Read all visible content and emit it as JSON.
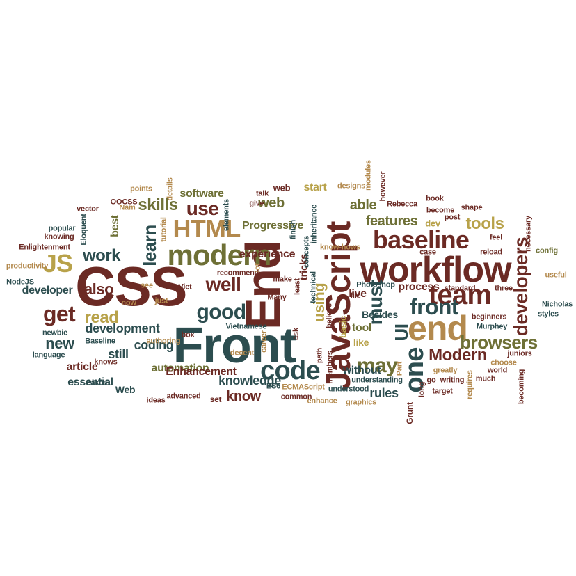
{
  "palette": {
    "maroon": "#6b2a24",
    "teal": "#2c4d4f",
    "olive": "#6e7036",
    "tan": "#b3894d",
    "gold": "#b8a24a",
    "lightgold": "#c5b46a"
  },
  "words": [
    {
      "text": "CSS",
      "c": "maroon"
    },
    {
      "text": "Front",
      "c": "teal"
    },
    {
      "text": "End",
      "c": "maroon"
    },
    {
      "text": "workflow",
      "c": "maroon"
    },
    {
      "text": "JavaScript",
      "c": "maroon"
    },
    {
      "text": "team",
      "c": "maroon"
    },
    {
      "text": "modern",
      "c": "olive"
    },
    {
      "text": "baseline",
      "c": "maroon"
    },
    {
      "text": "HTML",
      "c": "tan"
    },
    {
      "text": "front",
      "c": "teal"
    },
    {
      "text": "end",
      "c": "tan"
    },
    {
      "text": "code",
      "c": "teal"
    },
    {
      "text": "JS",
      "c": "gold"
    },
    {
      "text": "well",
      "c": "maroon"
    },
    {
      "text": "good",
      "c": "teal"
    },
    {
      "text": "get",
      "c": "maroon"
    },
    {
      "text": "developers",
      "c": "maroon"
    },
    {
      "text": "one",
      "c": "teal"
    },
    {
      "text": "must",
      "c": "teal"
    },
    {
      "text": "UI",
      "c": "teal"
    },
    {
      "text": "may",
      "c": "olive"
    },
    {
      "text": "browsers",
      "c": "olive"
    },
    {
      "text": "tools",
      "c": "gold"
    },
    {
      "text": "use",
      "c": "maroon"
    },
    {
      "text": "skills",
      "c": "olive"
    },
    {
      "text": "learn",
      "c": "teal"
    },
    {
      "text": "work",
      "c": "teal"
    },
    {
      "text": "read",
      "c": "gold"
    },
    {
      "text": "new",
      "c": "teal"
    },
    {
      "text": "also",
      "c": "maroon"
    },
    {
      "text": "Modern",
      "c": "maroon"
    },
    {
      "text": "using",
      "c": "gold"
    },
    {
      "text": "features",
      "c": "olive"
    },
    {
      "text": "able",
      "c": "olive"
    },
    {
      "text": "web",
      "c": "olive"
    },
    {
      "text": "development",
      "c": "teal"
    },
    {
      "text": "coding",
      "c": "teal"
    },
    {
      "text": "still",
      "c": "teal"
    },
    {
      "text": "know",
      "c": "maroon"
    },
    {
      "text": "knowledge",
      "c": "teal"
    },
    {
      "text": "automation",
      "c": "olive"
    },
    {
      "text": "article",
      "c": "maroon"
    },
    {
      "text": "essential",
      "c": "teal"
    },
    {
      "text": "Enhancement",
      "c": "maroon"
    },
    {
      "text": "Progressive",
      "c": "olive"
    },
    {
      "text": "experience",
      "c": "maroon"
    },
    {
      "text": "developer",
      "c": "teal"
    },
    {
      "text": "process",
      "c": "maroon"
    },
    {
      "text": "start",
      "c": "gold"
    },
    {
      "text": "software",
      "c": "olive"
    },
    {
      "text": "rules",
      "c": "teal"
    },
    {
      "text": "without",
      "c": "teal"
    },
    {
      "text": "tool",
      "c": "olive"
    },
    {
      "text": "live",
      "c": "maroon"
    },
    {
      "text": "like",
      "c": "gold"
    },
    {
      "text": "Besides",
      "c": "teal"
    },
    {
      "text": "Web",
      "c": "teal"
    },
    {
      "text": "best",
      "c": "olive"
    },
    {
      "text": "dev",
      "c": "gold"
    },
    {
      "text": "basic",
      "c": "gold"
    },
    {
      "text": "tricks",
      "c": "maroon"
    },
    {
      "text": "web",
      "c": "maroon"
    },
    {
      "text": "set",
      "c": "maroon"
    },
    {
      "text": "Grunt",
      "c": "maroon"
    },
    {
      "text": "points",
      "c": "tan"
    },
    {
      "text": "details",
      "c": "tan"
    },
    {
      "text": "elements",
      "c": "teal"
    },
    {
      "text": "talk",
      "c": "maroon"
    },
    {
      "text": "give",
      "c": "maroon"
    },
    {
      "text": "designs",
      "c": "tan"
    },
    {
      "text": "however",
      "c": "maroon"
    },
    {
      "text": "modules",
      "c": "tan"
    },
    {
      "text": "book",
      "c": "maroon"
    },
    {
      "text": "shape",
      "c": "maroon"
    },
    {
      "text": "vector",
      "c": "maroon"
    },
    {
      "text": "OOCSS",
      "c": "maroon"
    },
    {
      "text": "Nam",
      "c": "tan"
    },
    {
      "text": "tutorial",
      "c": "tan"
    },
    {
      "text": "Rebecca",
      "c": "maroon"
    },
    {
      "text": "become",
      "c": "maroon"
    },
    {
      "text": "post",
      "c": "maroon"
    },
    {
      "text": "necessary",
      "c": "maroon"
    },
    {
      "text": "feel",
      "c": "maroon"
    },
    {
      "text": "popular",
      "c": "teal"
    },
    {
      "text": "Eloquent",
      "c": "teal"
    },
    {
      "text": "knowing",
      "c": "maroon"
    },
    {
      "text": "Enlightenment",
      "c": "maroon"
    },
    {
      "text": "finish",
      "c": "teal"
    },
    {
      "text": "concepts",
      "c": "teal"
    },
    {
      "text": "inheritance",
      "c": "teal"
    },
    {
      "text": "know-hows",
      "c": "tan"
    },
    {
      "text": "reload",
      "c": "maroon"
    },
    {
      "text": "case",
      "c": "maroon"
    },
    {
      "text": "config",
      "c": "olive"
    },
    {
      "text": "productivity",
      "c": "tan"
    },
    {
      "text": "recommend",
      "c": "maroon"
    },
    {
      "text": "make",
      "c": "maroon"
    },
    {
      "text": "lot",
      "c": "tan"
    },
    {
      "text": "least",
      "c": "maroon"
    },
    {
      "text": "technical",
      "c": "teal"
    },
    {
      "text": "Photoshop",
      "c": "teal"
    },
    {
      "text": "file",
      "c": "maroon"
    },
    {
      "text": "standard",
      "c": "maroon"
    },
    {
      "text": "three",
      "c": "maroon"
    },
    {
      "text": "useful",
      "c": "tan"
    },
    {
      "text": "NodeJS",
      "c": "teal"
    },
    {
      "text": "see",
      "c": "tan"
    },
    {
      "text": "Viet",
      "c": "maroon"
    },
    {
      "text": "now",
      "c": "tan"
    },
    {
      "text": "just",
      "c": "tan"
    },
    {
      "text": "Many",
      "c": "maroon"
    },
    {
      "text": "believe",
      "c": "maroon"
    },
    {
      "text": "Nicholas",
      "c": "teal"
    },
    {
      "text": "styles",
      "c": "teal"
    },
    {
      "text": "Vietnamese",
      "c": "teal"
    },
    {
      "text": "beginners",
      "c": "maroon"
    },
    {
      "text": "Murphey",
      "c": "teal"
    },
    {
      "text": "newbie",
      "c": "teal"
    },
    {
      "text": "Baseline",
      "c": "teal"
    },
    {
      "text": "authoring",
      "c": "tan"
    },
    {
      "text": "box",
      "c": "maroon"
    },
    {
      "text": "ask",
      "c": "maroon"
    },
    {
      "text": "career",
      "c": "tan"
    },
    {
      "text": "decent",
      "c": "tan"
    },
    {
      "text": "path",
      "c": "maroon"
    },
    {
      "text": "members",
      "c": "maroon"
    },
    {
      "text": "juniors",
      "c": "maroon"
    },
    {
      "text": "language",
      "c": "teal"
    },
    {
      "text": "knows",
      "c": "maroon"
    },
    {
      "text": "greatly",
      "c": "tan"
    },
    {
      "text": "choose",
      "c": "tan"
    },
    {
      "text": "Part",
      "c": "tan"
    },
    {
      "text": "understanding",
      "c": "teal"
    },
    {
      "text": "go",
      "c": "maroon"
    },
    {
      "text": "writing",
      "c": "maroon"
    },
    {
      "text": "requires",
      "c": "tan"
    },
    {
      "text": "much",
      "c": "maroon"
    },
    {
      "text": "world",
      "c": "maroon"
    },
    {
      "text": "Zakas",
      "c": "teal"
    },
    {
      "text": "ideas",
      "c": "maroon"
    },
    {
      "text": "advanced",
      "c": "maroon"
    },
    {
      "text": "ES6",
      "c": "teal"
    },
    {
      "text": "ECMAScript",
      "c": "tan"
    },
    {
      "text": "understood",
      "c": "teal"
    },
    {
      "text": "common",
      "c": "maroon"
    },
    {
      "text": "enhance",
      "c": "tan"
    },
    {
      "text": "graphics",
      "c": "tan"
    },
    {
      "text": "target",
      "c": "maroon"
    },
    {
      "text": "long",
      "c": "maroon"
    },
    {
      "text": "becoming",
      "c": "maroon"
    }
  ]
}
